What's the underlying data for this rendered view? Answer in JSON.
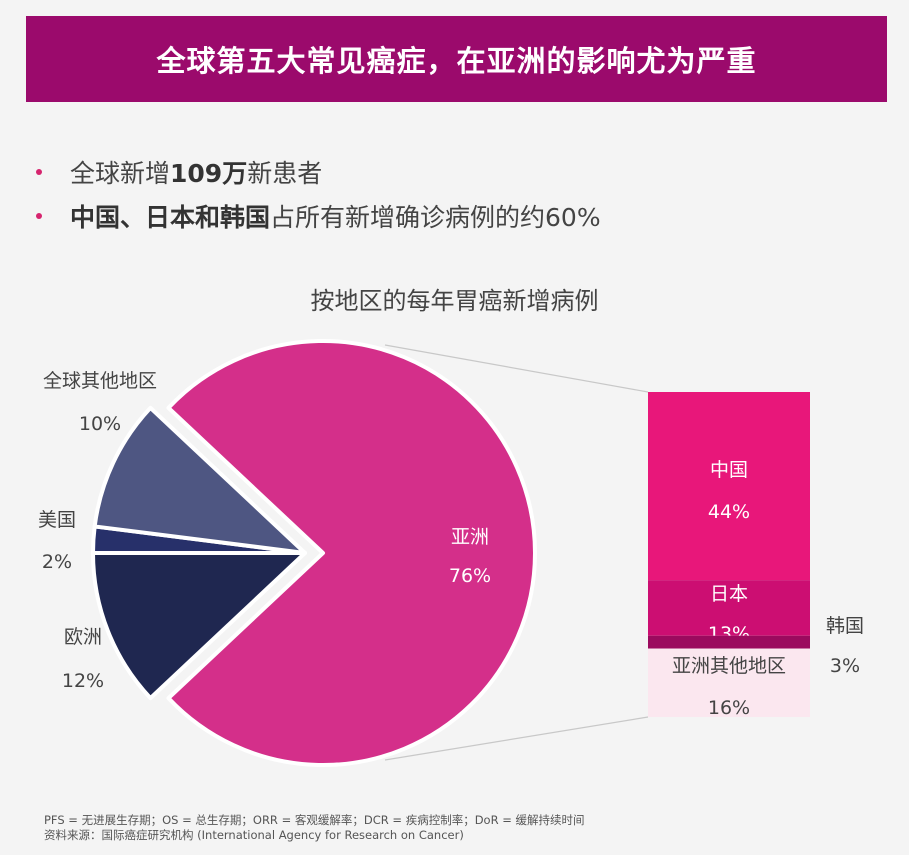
{
  "header": {
    "title": "全球第五大常见癌症，在亚洲的影响尤为严重"
  },
  "bullets": [
    {
      "pre": "全球新增",
      "bold": "109万",
      "post": "新患者"
    },
    {
      "pre": "",
      "bold": "中国、日本和韩国",
      "post": "占所有新增确诊病例的约60%"
    }
  ],
  "chart_data": [
    {
      "type": "pie",
      "title": "按地区的每年胃癌新增病例",
      "slices": [
        {
          "label": "亚洲",
          "value": 76,
          "display": "76%",
          "color": "#d42f8a"
        },
        {
          "label": "欧洲",
          "value": 12,
          "display": "12%",
          "color": "#1f2750"
        },
        {
          "label": "美国",
          "value": 2,
          "display": "2%",
          "color": "#27306a"
        },
        {
          "label": "全球其他地区",
          "value": 10,
          "display": "10%",
          "color": "#4e5682"
        }
      ]
    },
    {
      "type": "bar",
      "stacked": true,
      "breakdown_of": "亚洲",
      "segments": [
        {
          "label": "中国",
          "value": 44,
          "display": "44%",
          "color": "#e8177a"
        },
        {
          "label": "日本",
          "value": 13,
          "display": "13%",
          "color": "#cc0e72"
        },
        {
          "label": "韩国",
          "value": 3,
          "display": "3%",
          "color": "#9b0a5e"
        },
        {
          "label": "亚洲其他地区",
          "value": 16,
          "display": "16%",
          "color": "#fbe7ef"
        }
      ]
    }
  ],
  "footer": {
    "line1": "PFS = 无进展生存期；OS = 总生存期；ORR = 客观缓解率；DCR = 疾病控制率；DoR = 缓解持续时间",
    "line2": "资料来源：国际癌症研究机构 (International Agency for Research on Cancer)"
  }
}
